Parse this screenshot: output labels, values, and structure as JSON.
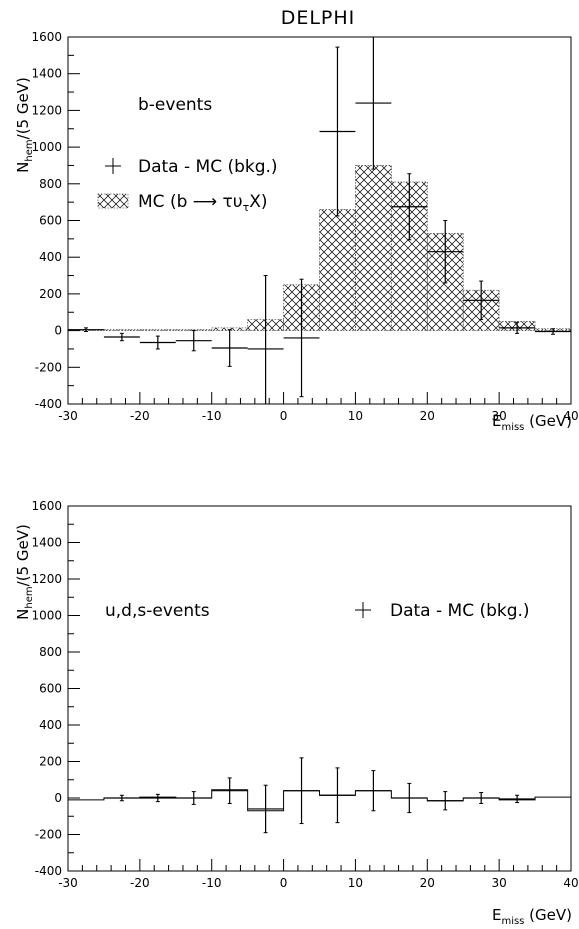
{
  "title": "DELPHI",
  "chart_data": [
    {
      "type": "bar",
      "panel": "top",
      "annotation": "b-events",
      "ylabel_main": "N",
      "ylabel_sub": "hem",
      "ylabel_tail": "/(5 GeV)",
      "xlabel_main": "E",
      "xlabel_sub": "miss",
      "xlabel_tail": " (GeV)",
      "xlim": [
        -30,
        40
      ],
      "ylim": [
        -400,
        1600
      ],
      "xticks": [
        -30,
        -20,
        -10,
        0,
        10,
        20,
        30,
        40
      ],
      "yticks": [
        -400,
        -200,
        0,
        200,
        400,
        600,
        800,
        1000,
        1200,
        1400,
        1600
      ],
      "legend": [
        {
          "marker": "cross",
          "label": "Data - MC (bkg.)"
        },
        {
          "marker": "hatch",
          "label_pre": "MC (b ",
          "label_arrow": "⟶",
          "label_mid": " τυ",
          "label_sub": "τ",
          "label_post": "X)"
        }
      ],
      "bin_edges": [
        -30,
        -25,
        -20,
        -15,
        -10,
        -5,
        0,
        5,
        10,
        15,
        20,
        25,
        30,
        35,
        40
      ],
      "series": [
        {
          "name": "MC (b → τυτX)",
          "kind": "hatched-histogram",
          "values": [
            5,
            5,
            5,
            5,
            15,
            60,
            250,
            660,
            900,
            810,
            530,
            220,
            50,
            10
          ]
        },
        {
          "name": "Data - MC (bkg.)",
          "kind": "points",
          "x": [
            -27.5,
            -22.5,
            -17.5,
            -12.5,
            -7.5,
            -2.5,
            2.5,
            7.5,
            12.5,
            17.5,
            22.5,
            27.5,
            32.5,
            37.5
          ],
          "values": [
            5,
            -35,
            -65,
            -55,
            -95,
            -100,
            -40,
            1085,
            1240,
            675,
            430,
            165,
            15,
            -5
          ],
          "err": [
            10,
            20,
            35,
            55,
            100,
            400,
            320,
            460,
            360,
            180,
            170,
            105,
            30,
            15
          ]
        }
      ]
    },
    {
      "type": "bar",
      "panel": "bottom",
      "annotation": "u,d,s-events",
      "ylabel_main": "N",
      "ylabel_sub": "hem",
      "ylabel_tail": "/(5 GeV)",
      "xlabel_main": "E",
      "xlabel_sub": "miss",
      "xlabel_tail": " (GeV)",
      "xlim": [
        -30,
        40
      ],
      "ylim": [
        -400,
        1600
      ],
      "xticks": [
        -30,
        -20,
        -10,
        0,
        10,
        20,
        30,
        40
      ],
      "yticks": [
        -400,
        -200,
        0,
        200,
        400,
        600,
        800,
        1000,
        1200,
        1400,
        1600
      ],
      "legend": [
        {
          "marker": "cross",
          "label": "Data - MC (bkg.)"
        }
      ],
      "bin_edges": [
        -30,
        -25,
        -20,
        -15,
        -10,
        -5,
        0,
        5,
        10,
        15,
        20,
        25,
        30,
        35,
        40
      ],
      "series": [
        {
          "name": "MC",
          "kind": "step-histogram",
          "values": [
            -10,
            0,
            5,
            0,
            45,
            -70,
            40,
            15,
            40,
            0,
            -15,
            0,
            -10,
            5
          ]
        },
        {
          "name": "Data - MC (bkg.)",
          "kind": "points",
          "x": [
            -22.5,
            -17.5,
            -12.5,
            -7.5,
            -2.5,
            2.5,
            7.5,
            12.5,
            17.5,
            22.5,
            27.5,
            32.5
          ],
          "values": [
            0,
            0,
            0,
            40,
            -60,
            40,
            15,
            40,
            0,
            -15,
            0,
            -5
          ],
          "err": [
            15,
            20,
            35,
            70,
            130,
            180,
            150,
            110,
            80,
            50,
            30,
            20
          ]
        }
      ]
    }
  ]
}
